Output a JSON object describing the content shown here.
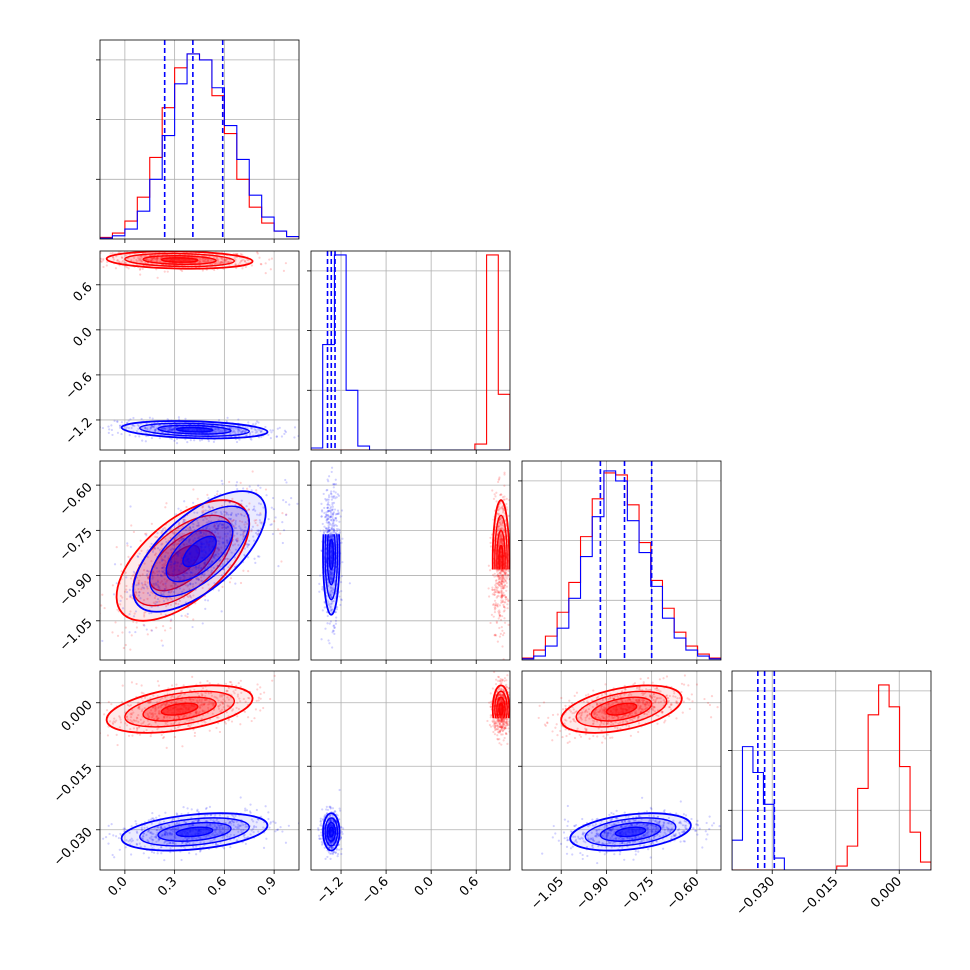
{
  "chart_data": {
    "type": "corner",
    "title": "",
    "grid": true,
    "series": [
      {
        "key": "red",
        "color": "#ff0000"
      },
      {
        "key": "blue",
        "color": "#0000ff"
      }
    ],
    "parameters": [
      {
        "index": 0,
        "range": [
          -0.15,
          1.05
        ],
        "ticks": [
          "0.0",
          "0.3",
          "0.6",
          "0.9"
        ],
        "tick_values": [
          0.0,
          0.3,
          0.6,
          0.9
        ]
      },
      {
        "index": 1,
        "range": [
          -1.6,
          1.05
        ],
        "ticks": [
          "−1.2",
          "−0.6",
          "0.0",
          "0.6"
        ],
        "tick_values": [
          -1.2,
          -0.6,
          0.0,
          0.6
        ]
      },
      {
        "index": 2,
        "range": [
          -1.18,
          -0.52
        ],
        "ticks": [
          "−1.05",
          "−0.90",
          "−0.75",
          "−0.60"
        ],
        "tick_values": [
          -1.05,
          -0.9,
          -0.75,
          -0.6
        ]
      },
      {
        "index": 3,
        "range": [
          -0.0395,
          0.0075
        ],
        "ticks": [
          "−0.030",
          "−0.015",
          "0.000"
        ],
        "tick_values": [
          -0.03,
          -0.015,
          0.0
        ]
      }
    ],
    "marginals": [
      {
        "param": 0,
        "histogram_range": [
          -0.15,
          1.05
        ],
        "red": [
          0.008,
          0.03,
          0.09,
          0.21,
          0.41,
          0.66,
          0.86,
          0.93,
          0.9,
          0.72,
          0.53,
          0.3,
          0.16,
          0.08,
          0.04,
          0.012
        ],
        "blue": [
          0.004,
          0.016,
          0.05,
          0.14,
          0.3,
          0.52,
          0.78,
          0.93,
          0.9,
          0.76,
          0.57,
          0.4,
          0.22,
          0.11,
          0.04,
          0.012
        ],
        "quantiles_blue": [
          0.24,
          0.41,
          0.59
        ]
      },
      {
        "param": 1,
        "histogram_range": [
          -1.6,
          1.05
        ],
        "red": [
          0,
          0,
          0,
          0,
          0,
          0,
          0,
          0,
          0,
          0,
          0,
          0,
          0,
          0,
          0.03,
          0.98,
          0.28
        ],
        "blue": [
          0.01,
          0.53,
          0.98,
          0.3,
          0.02,
          0,
          0,
          0,
          0,
          0,
          0,
          0,
          0,
          0,
          0,
          0,
          0
        ],
        "quantiles_blue": [
          -1.38,
          -1.33,
          -1.28
        ]
      },
      {
        "param": 2,
        "histogram_range": [
          -1.18,
          -0.52
        ],
        "red": [
          0.01,
          0.05,
          0.12,
          0.24,
          0.39,
          0.62,
          0.81,
          0.94,
          0.93,
          0.78,
          0.59,
          0.4,
          0.26,
          0.14,
          0.07,
          0.03,
          0.01
        ],
        "blue": [
          0.006,
          0.02,
          0.07,
          0.16,
          0.31,
          0.52,
          0.72,
          0.95,
          0.9,
          0.7,
          0.54,
          0.37,
          0.21,
          0.11,
          0.05,
          0.02,
          0.006
        ],
        "quantiles_blue": [
          -0.92,
          -0.84,
          -0.75
        ]
      },
      {
        "param": 3,
        "histogram_range": [
          -0.0395,
          0.0075
        ],
        "red": [
          0,
          0,
          0,
          0,
          0,
          0,
          0,
          0,
          0,
          0,
          0.02,
          0.12,
          0.41,
          0.78,
          0.93,
          0.82,
          0.52,
          0.19,
          0.04
        ],
        "blue": [
          0.15,
          0.62,
          0.49,
          0.33,
          0.06,
          0.0,
          0,
          0,
          0,
          0,
          0,
          0,
          0,
          0,
          0,
          0,
          0,
          0,
          0
        ],
        "quantiles_blue": [
          -0.0334,
          -0.0318,
          -0.0295
        ]
      }
    ],
    "joint": [
      {
        "x": 0,
        "y": 1,
        "red": {
          "center": [
            0.33,
            0.93
          ],
          "sd": [
            0.22,
            0.058
          ],
          "rho": -0.15
        },
        "blue": {
          "center": [
            0.42,
            -1.33
          ],
          "sd": [
            0.22,
            0.058
          ],
          "rho": -0.25
        }
      },
      {
        "x": 0,
        "y": 2,
        "red": {
          "center": [
            0.35,
            -0.85
          ],
          "sd": [
            0.2,
            0.1
          ],
          "rho": 0.6
        },
        "blue": {
          "center": [
            0.45,
            -0.82
          ],
          "sd": [
            0.2,
            0.1
          ],
          "rho": 0.65
        }
      },
      {
        "x": 1,
        "y": 2,
        "red": {
          "center": [
            0.93,
            -0.85
          ],
          "sd": [
            0.055,
            0.1
          ],
          "rho": 0.0
        },
        "blue": {
          "center": [
            -1.33,
            -0.83
          ],
          "sd": [
            0.055,
            0.1
          ],
          "rho": 0.0
        }
      },
      {
        "x": 0,
        "y": 3,
        "red": {
          "center": [
            0.33,
            -0.0015
          ],
          "sd": [
            0.22,
            0.0028
          ],
          "rho": 0.45
        },
        "blue": {
          "center": [
            0.42,
            -0.0305
          ],
          "sd": [
            0.22,
            0.0022
          ],
          "rho": 0.35
        }
      },
      {
        "x": 1,
        "y": 3,
        "red": {
          "center": [
            0.93,
            -0.0015
          ],
          "sd": [
            0.055,
            0.0028
          ],
          "rho": 0.0
        },
        "blue": {
          "center": [
            -1.33,
            -0.0305
          ],
          "sd": [
            0.055,
            0.0022
          ],
          "rho": 0.0
        }
      },
      {
        "x": 2,
        "y": 3,
        "red": {
          "center": [
            -0.85,
            -0.0015
          ],
          "sd": [
            0.1,
            0.0028
          ],
          "rho": 0.45
        },
        "blue": {
          "center": [
            -0.82,
            -0.0305
          ],
          "sd": [
            0.1,
            0.0022
          ],
          "rho": 0.35
        }
      }
    ]
  }
}
